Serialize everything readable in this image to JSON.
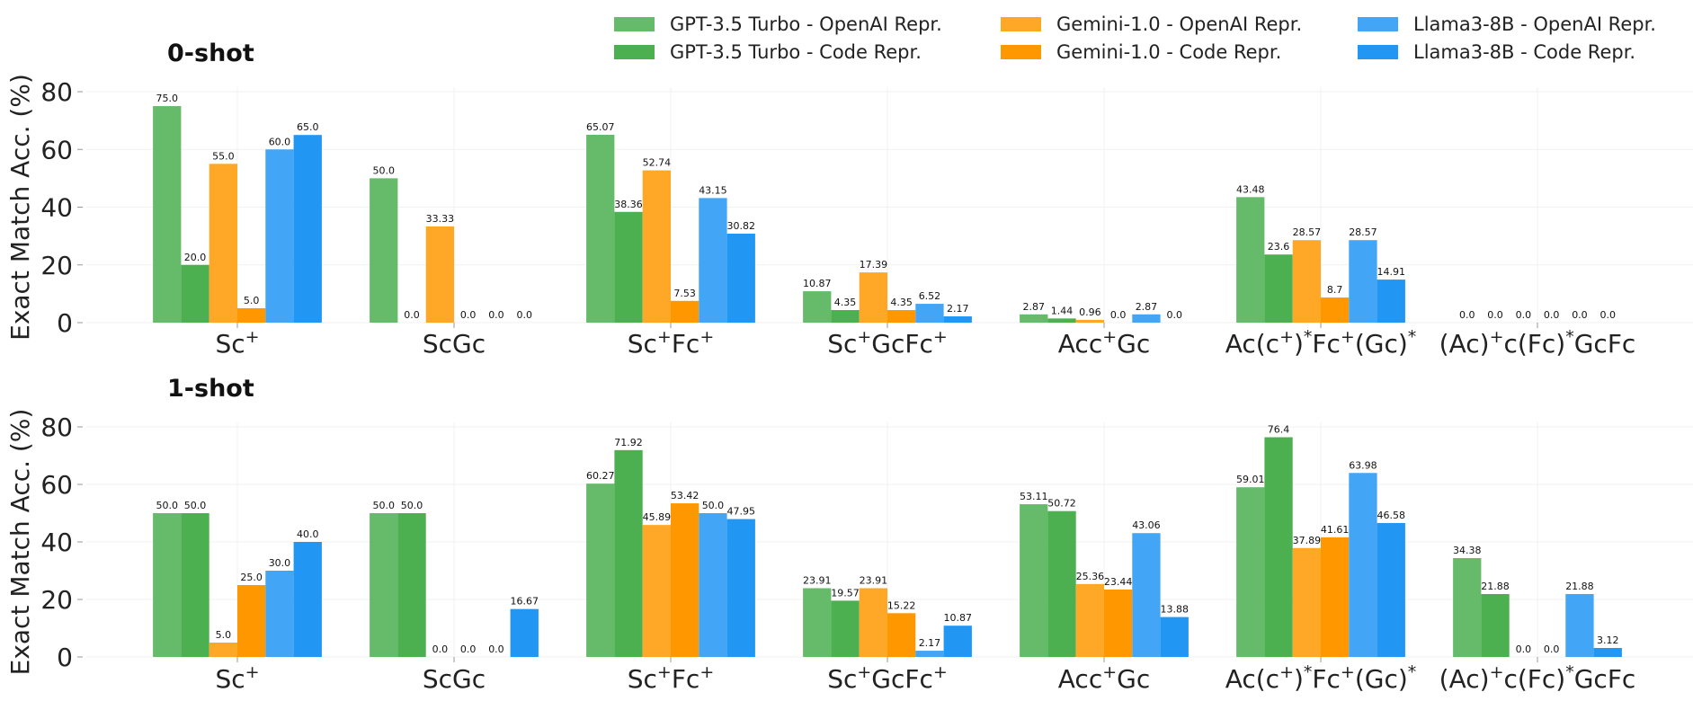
{
  "chart_data": [
    {
      "type": "bar",
      "title": "0-shot",
      "ylabel": "Exact Match Acc. (%)",
      "xlabel": "",
      "ylim": [
        0,
        80
      ],
      "yticks": [
        "0",
        "20",
        "40",
        "60",
        "80"
      ],
      "grid": true,
      "categories": [
        {
          "base": "Sc",
          "parts": [
            [
              "Sc",
              ""
            ],
            [
              "+",
              "sup"
            ]
          ]
        },
        {
          "base": "ScGc",
          "parts": [
            [
              "ScGc",
              ""
            ]
          ]
        },
        {
          "base": "Sc+Fc+",
          "parts": [
            [
              "Sc",
              ""
            ],
            [
              "+",
              "sup"
            ],
            [
              "Fc",
              ""
            ],
            [
              "+",
              "sup"
            ]
          ]
        },
        {
          "base": "Sc+GcFc+",
          "parts": [
            [
              "Sc",
              ""
            ],
            [
              "+",
              "sup"
            ],
            [
              "GcFc",
              ""
            ],
            [
              "+",
              "sup"
            ]
          ]
        },
        {
          "base": "Acc+Gc",
          "parts": [
            [
              "Acc",
              ""
            ],
            [
              "+",
              "sup"
            ],
            [
              "Gc",
              ""
            ]
          ]
        },
        {
          "base": "Ac(c+)*Fc+(Gc)*",
          "parts": [
            [
              "Ac(c",
              ""
            ],
            [
              "+",
              "sup"
            ],
            [
              ")",
              ""
            ],
            [
              "*",
              "sup"
            ],
            [
              "Fc",
              ""
            ],
            [
              "+",
              "sup"
            ],
            [
              "(Gc)",
              ""
            ],
            [
              "*",
              "sup"
            ]
          ]
        },
        {
          "base": "(Ac)+c(Fc)*GcFc",
          "parts": [
            [
              "(Ac)",
              ""
            ],
            [
              "+",
              "sup"
            ],
            [
              "c(Fc)",
              ""
            ],
            [
              "*",
              "sup"
            ],
            [
              "GcFc",
              ""
            ]
          ]
        }
      ],
      "series": [
        {
          "name": "GPT-3.5 Turbo - OpenAI Repr.",
          "color": "#66bb6a",
          "values": [
            75.0,
            50.0,
            65.07,
            10.87,
            2.87,
            43.48,
            0.0
          ],
          "labels": [
            "75.0",
            "50.0",
            "65.07",
            "10.87",
            "2.87",
            "43.48",
            "0.0"
          ]
        },
        {
          "name": "GPT-3.5 Turbo - Code Repr.",
          "color": "#4caf50",
          "values": [
            20.0,
            0.0,
            38.36,
            4.35,
            1.44,
            23.6,
            0.0
          ],
          "labels": [
            "20.0",
            "0.0",
            "38.36",
            "4.35",
            "1.44",
            "23.6",
            "0.0"
          ]
        },
        {
          "name": "Gemini-1.0 - OpenAI Repr.",
          "color": "#ffa726",
          "values": [
            55.0,
            33.33,
            52.74,
            17.39,
            0.96,
            28.57,
            0.0
          ],
          "labels": [
            "55.0",
            "33.33",
            "52.74",
            "17.39",
            "0.96",
            "28.57",
            "0.0"
          ]
        },
        {
          "name": "Gemini-1.0 - Code Repr.",
          "color": "#ff9800",
          "values": [
            5.0,
            0.0,
            7.53,
            4.35,
            0.0,
            8.7,
            0.0
          ],
          "labels": [
            "5.0",
            "0.0",
            "7.53",
            "4.35",
            "0.0",
            "8.7",
            "0.0"
          ]
        },
        {
          "name": "Llama3-8B - OpenAI Repr.",
          "color": "#42a5f5",
          "values": [
            60.0,
            0.0,
            43.15,
            6.52,
            2.87,
            28.57,
            0.0
          ],
          "labels": [
            "60.0",
            "0.0",
            "43.15",
            "6.52",
            "2.87",
            "28.57",
            "0.0"
          ]
        },
        {
          "name": "Llama3-8B - Code Repr.",
          "color": "#2196f3",
          "values": [
            65.0,
            0.0,
            30.82,
            2.17,
            0.0,
            14.91,
            0.0
          ],
          "labels": [
            "65.0",
            "0.0",
            "30.82",
            "2.17",
            "0.0",
            "14.91",
            "0.0"
          ]
        }
      ]
    },
    {
      "type": "bar",
      "title": "1-shot",
      "ylabel": "Exact Match Acc. (%)",
      "xlabel": "",
      "ylim": [
        0,
        80
      ],
      "yticks": [
        "0",
        "20",
        "40",
        "60",
        "80"
      ],
      "grid": true,
      "categories": [
        {
          "base": "Sc",
          "parts": [
            [
              "Sc",
              ""
            ],
            [
              "+",
              "sup"
            ]
          ]
        },
        {
          "base": "ScGc",
          "parts": [
            [
              "ScGc",
              ""
            ]
          ]
        },
        {
          "base": "Sc+Fc+",
          "parts": [
            [
              "Sc",
              ""
            ],
            [
              "+",
              "sup"
            ],
            [
              "Fc",
              ""
            ],
            [
              "+",
              "sup"
            ]
          ]
        },
        {
          "base": "Sc+GcFc+",
          "parts": [
            [
              "Sc",
              ""
            ],
            [
              "+",
              "sup"
            ],
            [
              "GcFc",
              ""
            ],
            [
              "+",
              "sup"
            ]
          ]
        },
        {
          "base": "Acc+Gc",
          "parts": [
            [
              "Acc",
              ""
            ],
            [
              "+",
              "sup"
            ],
            [
              "Gc",
              ""
            ]
          ]
        },
        {
          "base": "Ac(c+)*Fc+(Gc)*",
          "parts": [
            [
              "Ac(c",
              ""
            ],
            [
              "+",
              "sup"
            ],
            [
              ")",
              ""
            ],
            [
              "*",
              "sup"
            ],
            [
              "Fc",
              ""
            ],
            [
              "+",
              "sup"
            ],
            [
              "(Gc)",
              ""
            ],
            [
              "*",
              "sup"
            ]
          ]
        },
        {
          "base": "(Ac)+c(Fc)*GcFc",
          "parts": [
            [
              "(Ac)",
              ""
            ],
            [
              "+",
              "sup"
            ],
            [
              "c(Fc)",
              ""
            ],
            [
              "*",
              "sup"
            ],
            [
              "GcFc",
              ""
            ]
          ]
        }
      ],
      "series": [
        {
          "name": "GPT-3.5 Turbo - OpenAI Repr.",
          "color": "#66bb6a",
          "values": [
            50.0,
            50.0,
            60.27,
            23.91,
            53.11,
            59.01,
            34.38
          ],
          "labels": [
            "50.0",
            "50.0",
            "60.27",
            "23.91",
            "53.11",
            "59.01",
            "34.38"
          ]
        },
        {
          "name": "GPT-3.5 Turbo - Code Repr.",
          "color": "#4caf50",
          "values": [
            50.0,
            50.0,
            71.92,
            19.57,
            50.72,
            76.4,
            21.88
          ],
          "labels": [
            "50.0",
            "50.0",
            "71.92",
            "19.57",
            "50.72",
            "76.4",
            "21.88"
          ]
        },
        {
          "name": "Gemini-1.0 - OpenAI Repr.",
          "color": "#ffa726",
          "values": [
            5.0,
            0.0,
            45.89,
            23.91,
            25.36,
            37.89,
            0.0
          ],
          "labels": [
            "5.0",
            "0.0",
            "45.89",
            "23.91",
            "25.36",
            "37.89",
            "0.0"
          ]
        },
        {
          "name": "Gemini-1.0 - Code Repr.",
          "color": "#ff9800",
          "values": [
            25.0,
            0.0,
            53.42,
            15.22,
            23.44,
            41.61,
            0.0
          ],
          "labels": [
            "25.0",
            "0.0",
            "53.42",
            "15.22",
            "23.44",
            "41.61",
            "0.0"
          ]
        },
        {
          "name": "Llama3-8B - OpenAI Repr.",
          "color": "#42a5f5",
          "values": [
            30.0,
            0.0,
            50.0,
            2.17,
            43.06,
            63.98,
            21.88
          ],
          "labels": [
            "30.0",
            "0.0",
            "50.0",
            "2.17",
            "43.06",
            "63.98",
            "21.88"
          ]
        },
        {
          "name": "Llama3-8B - Code Repr.",
          "color": "#2196f3",
          "values": [
            40.0,
            16.67,
            47.95,
            10.87,
            13.88,
            46.58,
            3.12
          ],
          "labels": [
            "40.0",
            "16.67",
            "47.95",
            "10.87",
            "13.88",
            "46.58",
            "3.12"
          ]
        }
      ]
    }
  ],
  "legend": {
    "placement": "top",
    "columns": 3,
    "entries": [
      {
        "label": "GPT-3.5 Turbo - OpenAI Repr.",
        "color": "#66bb6a"
      },
      {
        "label": "GPT-3.5 Turbo - Code Repr.",
        "color": "#4caf50"
      },
      {
        "label": "Gemini-1.0 - OpenAI Repr.",
        "color": "#ffa726"
      },
      {
        "label": "Gemini-1.0 - Code Repr.",
        "color": "#ff9800"
      },
      {
        "label": "Llama3-8B - OpenAI Repr.",
        "color": "#42a5f5"
      },
      {
        "label": "Llama3-8B - Code Repr.",
        "color": "#2196f3"
      }
    ]
  }
}
